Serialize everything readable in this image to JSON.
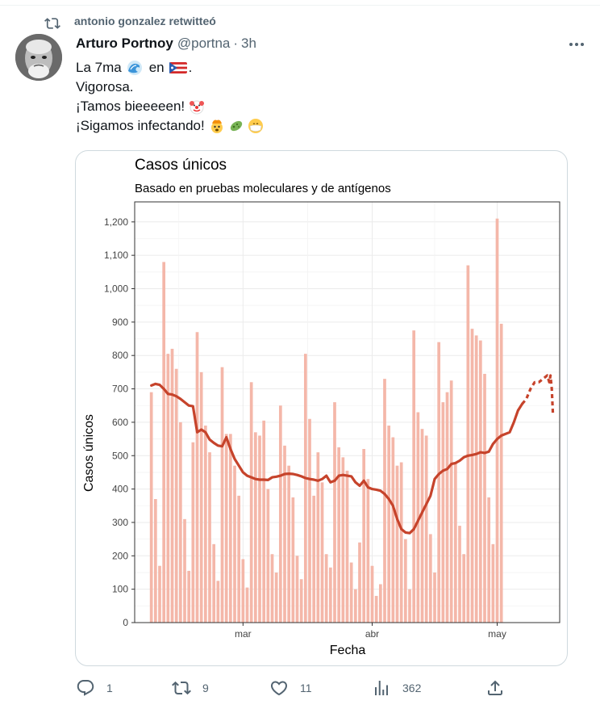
{
  "retweet_line": "antonio gonzalez retwitteó",
  "author": {
    "name": "Arturo Portnoy",
    "handle": "@portna",
    "time": "3h"
  },
  "tweet": {
    "line1_a": "La 7ma",
    "line1_b": "en",
    "line1_c": ".",
    "line2": "Vigorosa.",
    "line3": "¡Tamos bieeeeen!",
    "line4": "¡Sigamos infectando!"
  },
  "icons": {
    "retweet": "retweet-icon",
    "more": "more-icon",
    "wave": "wave-emoji-icon",
    "flag": "puerto-rico-flag-icon",
    "clown": "clown-face-icon",
    "exploding": "exploding-head-icon",
    "microbe": "microbe-icon",
    "mask": "face-mask-icon",
    "reply": "reply-icon",
    "retweet_action": "retweet-action-icon",
    "like": "heart-icon",
    "views": "views-icon",
    "share": "share-icon"
  },
  "actions": {
    "replies": "1",
    "retweets": "9",
    "likes": "11",
    "views": "362"
  },
  "colors": {
    "bar": "#f4b7a9",
    "line": "#c6432b",
    "grid": "#ebebeb"
  },
  "chart_data": {
    "type": "bar",
    "title": "Casos únicos",
    "subtitle": "Basado en pruebas moleculares y de antígenos",
    "xlabel": "Fecha",
    "ylabel": "Casos únicos",
    "ylim": [
      0,
      1260
    ],
    "yticks": [
      0,
      100,
      200,
      300,
      400,
      500,
      600,
      700,
      800,
      900,
      1000,
      1100,
      1200
    ],
    "ytick_labels": [
      "0",
      "100",
      "200",
      "300",
      "400",
      "500",
      "600",
      "700",
      "800",
      "900",
      "1,000",
      "1,100",
      "1,200"
    ],
    "xticks": [
      {
        "date": "2022-03-01",
        "label": "mar"
      },
      {
        "date": "2022-04-01",
        "label": "abr"
      },
      {
        "date": "2022-05-01",
        "label": "may"
      }
    ],
    "xlim": [
      "2022-02-03",
      "2022-05-16"
    ],
    "bar_dates_start": "2022-02-07",
    "values": [
      690,
      370,
      170,
      1080,
      805,
      820,
      760,
      600,
      310,
      155,
      540,
      870,
      750,
      590,
      510,
      235,
      125,
      765,
      565,
      565,
      470,
      380,
      190,
      105,
      720,
      570,
      560,
      605,
      400,
      205,
      150,
      650,
      530,
      470,
      375,
      200,
      130,
      805,
      610,
      380,
      510,
      420,
      205,
      165,
      660,
      525,
      495,
      455,
      180,
      100,
      240,
      520,
      430,
      170,
      80,
      115,
      730,
      590,
      555,
      470,
      480,
      250,
      100,
      875,
      630,
      580,
      560,
      265,
      150,
      840,
      660,
      690,
      725,
      480,
      290,
      205,
      1070,
      880,
      860,
      845,
      745,
      375,
      235,
      1210,
      895
    ],
    "trend": {
      "dates_start": "2022-02-07",
      "values": [
        710,
        715,
        712,
        700,
        685,
        683,
        678,
        670,
        660,
        650,
        648,
        570,
        578,
        570,
        548,
        538,
        530,
        528,
        555,
        520,
        490,
        470,
        450,
        440,
        435,
        430,
        428,
        428,
        427,
        435,
        437,
        440,
        445,
        446,
        445,
        442,
        438,
        433,
        430,
        428,
        425,
        430,
        440,
        420,
        425,
        440,
        442,
        440,
        438,
        420,
        410,
        425,
        405,
        400,
        398,
        395,
        385,
        370,
        350,
        310,
        280,
        270,
        268,
        280,
        305,
        330,
        355,
        380,
        430,
        445,
        455,
        460,
        475,
        478,
        485,
        495,
        500,
        502,
        505,
        510,
        508,
        512,
        535,
        550,
        560,
        565,
        570,
        600,
        635,
        655,
        670,
        700,
        720,
        720,
        730,
        740
      ],
      "dashed_from_index": 89,
      "end_dashed": [
        720,
        740,
        700,
        620
      ]
    }
  }
}
